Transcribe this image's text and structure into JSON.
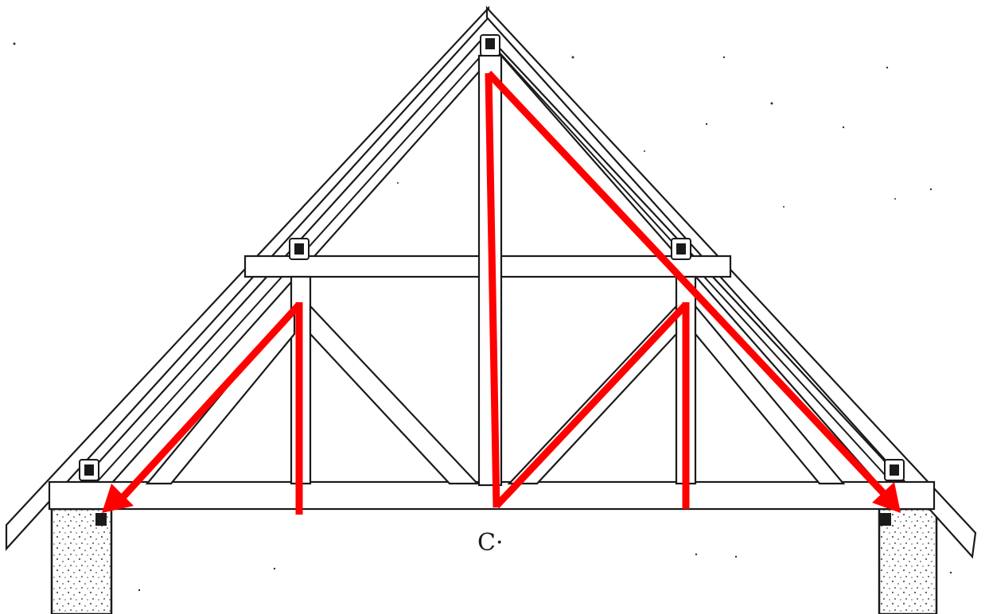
{
  "diagram": {
    "center_mark": "C·",
    "colors": {
      "ink": "#1a1a1a",
      "force_arrow": "#ff0000",
      "background": "#ffffff",
      "support_stipple": "#555555"
    },
    "icons": [
      "bolt-icon",
      "arrowhead-icon"
    ]
  }
}
